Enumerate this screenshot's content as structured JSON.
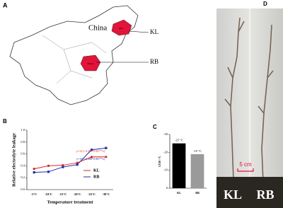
{
  "panel_labels": [
    "A",
    "B",
    "C",
    "D"
  ],
  "map": {
    "country": "China",
    "sites": [
      "KL",
      "RB"
    ],
    "region_labels": [
      "Jilin",
      "Henan"
    ]
  },
  "photo": {
    "scale_bar": "5 cm",
    "labels": [
      "KL",
      "RB"
    ]
  },
  "chart_data": [
    {
      "type": "line",
      "ylabel": "Relative electrolyte leakage",
      "xlabel": "Temperature treatment",
      "categories": [
        "-5°C",
        "-10°C",
        "-15°C",
        "-20°C",
        "-25°C",
        "-30°C"
      ],
      "series": [
        {
          "name": "KL",
          "color": "#d62728",
          "values": [
            0.35,
            0.4,
            0.41,
            0.45,
            0.55,
            0.55
          ]
        },
        {
          "name": "RB",
          "color": "#1f2fa0",
          "values": [
            0.29,
            0.3,
            0.38,
            0.42,
            0.67,
            0.7
          ]
        }
      ],
      "annotations": [
        "y=1/(1+4.269*0.927**x)",
        "y=1/(1+2.388*0.967**x)"
      ],
      "ylim": [
        0,
        1
      ],
      "yticks": [
        {
          "value": 0,
          "label": "0.0"
        },
        {
          "value": 0.2,
          "label": "0.2"
        },
        {
          "value": 0.4,
          "label": "0.4"
        },
        {
          "value": 0.6,
          "label": "0.6"
        },
        {
          "value": 0.8,
          "label": "0.8"
        },
        {
          "value": 1,
          "label": "1.0"
        }
      ],
      "legend": "right"
    },
    {
      "type": "bar",
      "ylabel": "LT50 /°C",
      "categories": [
        "KL",
        "RB"
      ],
      "values": [
        -25,
        -19
      ],
      "value_labels": [
        "-25 °C",
        "-19 °C"
      ],
      "colors": [
        "#000000",
        "#9a9a9a"
      ],
      "ylim": [
        0,
        -30
      ],
      "yticks": [
        0,
        -10,
        -20,
        -30
      ]
    }
  ]
}
